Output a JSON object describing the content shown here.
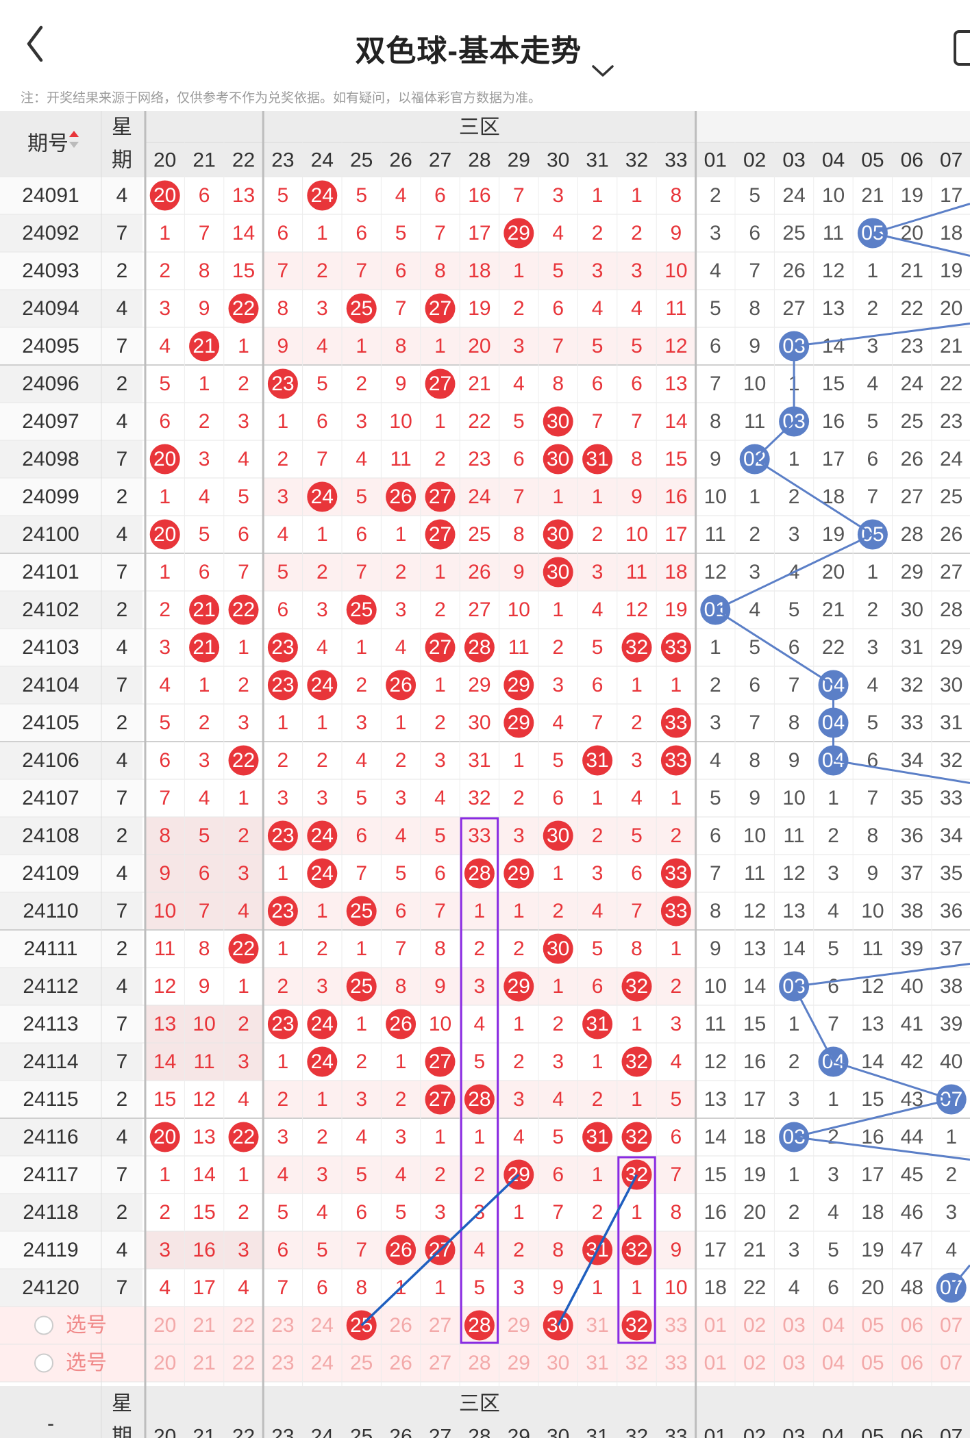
{
  "header": {
    "title": "双色球-基本走势",
    "notice": "注：开奖结果来源于网络，仅供参考不作为兑奖依据。如有疑问，以福体彩官方数据为准。",
    "back_icon": "chevron-left-icon",
    "dropdown_icon": "chevron-down-icon"
  },
  "table": {
    "col_period": "期号",
    "col_week_top": "星",
    "col_week_bottom": "期",
    "zone_label": "三区",
    "footer_dash": "-",
    "red_cols": [
      "20",
      "21",
      "22",
      "23",
      "24",
      "25",
      "26",
      "27",
      "28",
      "29",
      "30",
      "31",
      "32",
      "33"
    ],
    "blue_cols": [
      "01",
      "02",
      "03",
      "04",
      "05",
      "06",
      "07"
    ],
    "select_label": "选号",
    "rows": [
      {
        "p": "24091",
        "w": "4",
        "r": [
          "20",
          "6",
          "13",
          "5",
          "24",
          "5",
          "4",
          "6",
          "16",
          "7",
          "3",
          "1",
          "1",
          "8"
        ],
        "b": [
          "2",
          "5",
          "24",
          "10",
          "21",
          "19",
          "17"
        ]
      },
      {
        "p": "24092",
        "w": "7",
        "r": [
          "1",
          "7",
          "14",
          "6",
          "1",
          "6",
          "5",
          "7",
          "17",
          "29",
          "4",
          "2",
          "2",
          "9"
        ],
        "b": [
          "3",
          "6",
          "25",
          "11",
          "05",
          "20",
          "18"
        ]
      },
      {
        "p": "24093",
        "w": "2",
        "r": [
          "2",
          "8",
          "15",
          "7",
          "2",
          "7",
          "6",
          "8",
          "18",
          "1",
          "5",
          "3",
          "3",
          "10"
        ],
        "b": [
          "4",
          "7",
          "26",
          "12",
          "1",
          "21",
          "19"
        ]
      },
      {
        "p": "24094",
        "w": "4",
        "r": [
          "3",
          "9",
          "22",
          "8",
          "3",
          "25",
          "7",
          "27",
          "19",
          "2",
          "6",
          "4",
          "4",
          "11"
        ],
        "b": [
          "5",
          "8",
          "27",
          "13",
          "2",
          "22",
          "20"
        ]
      },
      {
        "p": "24095",
        "w": "7",
        "r": [
          "4",
          "21",
          "1",
          "9",
          "4",
          "1",
          "8",
          "1",
          "20",
          "3",
          "7",
          "5",
          "5",
          "12"
        ],
        "b": [
          "6",
          "9",
          "03",
          "14",
          "3",
          "23",
          "21"
        ]
      },
      {
        "p": "24096",
        "w": "2",
        "r": [
          "5",
          "1",
          "2",
          "23",
          "5",
          "2",
          "9",
          "27",
          "21",
          "4",
          "8",
          "6",
          "6",
          "13"
        ],
        "b": [
          "7",
          "10",
          "1",
          "15",
          "4",
          "24",
          "22"
        ]
      },
      {
        "p": "24097",
        "w": "4",
        "r": [
          "6",
          "2",
          "3",
          "1",
          "6",
          "3",
          "10",
          "1",
          "22",
          "5",
          "30",
          "7",
          "7",
          "14"
        ],
        "b": [
          "8",
          "11",
          "03",
          "16",
          "5",
          "25",
          "23"
        ]
      },
      {
        "p": "24098",
        "w": "7",
        "r": [
          "20",
          "3",
          "4",
          "2",
          "7",
          "4",
          "11",
          "2",
          "23",
          "6",
          "30",
          "31",
          "8",
          "15"
        ],
        "b": [
          "9",
          "02",
          "1",
          "17",
          "6",
          "26",
          "24"
        ]
      },
      {
        "p": "24099",
        "w": "2",
        "r": [
          "1",
          "4",
          "5",
          "3",
          "24",
          "5",
          "26",
          "27",
          "24",
          "7",
          "1",
          "1",
          "9",
          "16"
        ],
        "b": [
          "10",
          "1",
          "2",
          "18",
          "7",
          "27",
          "25"
        ]
      },
      {
        "p": "24100",
        "w": "4",
        "r": [
          "20",
          "5",
          "6",
          "4",
          "1",
          "6",
          "1",
          "27",
          "25",
          "8",
          "30",
          "2",
          "10",
          "17"
        ],
        "b": [
          "11",
          "2",
          "3",
          "19",
          "05",
          "28",
          "26"
        ]
      },
      {
        "p": "24101",
        "w": "7",
        "r": [
          "1",
          "6",
          "7",
          "5",
          "2",
          "7",
          "2",
          "1",
          "26",
          "9",
          "30",
          "3",
          "11",
          "18"
        ],
        "b": [
          "12",
          "3",
          "4",
          "20",
          "1",
          "29",
          "27"
        ]
      },
      {
        "p": "24102",
        "w": "2",
        "r": [
          "2",
          "21",
          "22",
          "6",
          "3",
          "25",
          "3",
          "2",
          "27",
          "10",
          "1",
          "4",
          "12",
          "19"
        ],
        "b": [
          "01",
          "4",
          "5",
          "21",
          "2",
          "30",
          "28"
        ]
      },
      {
        "p": "24103",
        "w": "4",
        "r": [
          "3",
          "21",
          "1",
          "23",
          "4",
          "1",
          "4",
          "27",
          "28",
          "11",
          "2",
          "5",
          "32",
          "33"
        ],
        "b": [
          "1",
          "5",
          "6",
          "22",
          "3",
          "31",
          "29"
        ]
      },
      {
        "p": "24104",
        "w": "7",
        "r": [
          "4",
          "1",
          "2",
          "23",
          "24",
          "2",
          "26",
          "1",
          "29",
          "29",
          "3",
          "6",
          "1",
          "1"
        ],
        "b": [
          "2",
          "6",
          "7",
          "04",
          "4",
          "32",
          "30"
        ]
      },
      {
        "p": "24105",
        "w": "2",
        "r": [
          "5",
          "2",
          "3",
          "1",
          "1",
          "3",
          "1",
          "2",
          "30",
          "29",
          "4",
          "7",
          "2",
          "33"
        ],
        "b": [
          "3",
          "7",
          "8",
          "04",
          "5",
          "33",
          "31"
        ]
      },
      {
        "p": "24106",
        "w": "4",
        "r": [
          "6",
          "3",
          "22",
          "2",
          "2",
          "4",
          "2",
          "3",
          "31",
          "1",
          "5",
          "31",
          "3",
          "33"
        ],
        "b": [
          "4",
          "8",
          "9",
          "04",
          "6",
          "34",
          "32"
        ]
      },
      {
        "p": "24107",
        "w": "7",
        "r": [
          "7",
          "4",
          "1",
          "3",
          "3",
          "5",
          "3",
          "4",
          "32",
          "2",
          "6",
          "1",
          "4",
          "1"
        ],
        "b": [
          "5",
          "9",
          "10",
          "1",
          "7",
          "35",
          "33"
        ]
      },
      {
        "p": "24108",
        "w": "2",
        "r": [
          "8",
          "5",
          "2",
          "23",
          "24",
          "6",
          "4",
          "5",
          "33",
          "3",
          "30",
          "2",
          "5",
          "2"
        ],
        "b": [
          "6",
          "10",
          "11",
          "2",
          "8",
          "36",
          "34"
        ]
      },
      {
        "p": "24109",
        "w": "4",
        "r": [
          "9",
          "6",
          "3",
          "1",
          "24",
          "7",
          "5",
          "6",
          "28",
          "29",
          "1",
          "3",
          "6",
          "33"
        ],
        "b": [
          "7",
          "11",
          "12",
          "3",
          "9",
          "37",
          "35"
        ]
      },
      {
        "p": "24110",
        "w": "7",
        "r": [
          "10",
          "7",
          "4",
          "23",
          "1",
          "25",
          "6",
          "7",
          "1",
          "1",
          "2",
          "4",
          "7",
          "33"
        ],
        "b": [
          "8",
          "12",
          "13",
          "4",
          "10",
          "38",
          "36"
        ]
      },
      {
        "p": "24111",
        "w": "2",
        "r": [
          "11",
          "8",
          "22",
          "1",
          "2",
          "1",
          "7",
          "8",
          "2",
          "2",
          "30",
          "5",
          "8",
          "1"
        ],
        "b": [
          "9",
          "13",
          "14",
          "5",
          "11",
          "39",
          "37"
        ]
      },
      {
        "p": "24112",
        "w": "4",
        "r": [
          "12",
          "9",
          "1",
          "2",
          "3",
          "25",
          "8",
          "9",
          "3",
          "29",
          "1",
          "6",
          "32",
          "2"
        ],
        "b": [
          "10",
          "14",
          "03",
          "6",
          "12",
          "40",
          "38"
        ]
      },
      {
        "p": "24113",
        "w": "7",
        "r": [
          "13",
          "10",
          "2",
          "23",
          "24",
          "1",
          "26",
          "10",
          "4",
          "1",
          "2",
          "31",
          "1",
          "3"
        ],
        "b": [
          "11",
          "15",
          "1",
          "7",
          "13",
          "41",
          "39"
        ]
      },
      {
        "p": "24114",
        "w": "7",
        "r": [
          "14",
          "11",
          "3",
          "1",
          "24",
          "2",
          "1",
          "27",
          "5",
          "2",
          "3",
          "1",
          "32",
          "4"
        ],
        "b": [
          "12",
          "16",
          "2",
          "04",
          "14",
          "42",
          "40"
        ]
      },
      {
        "p": "24115",
        "w": "2",
        "r": [
          "15",
          "12",
          "4",
          "2",
          "1",
          "3",
          "2",
          "27",
          "28",
          "3",
          "4",
          "2",
          "1",
          "5"
        ],
        "b": [
          "13",
          "17",
          "3",
          "1",
          "15",
          "43",
          "07"
        ]
      },
      {
        "p": "24116",
        "w": "4",
        "r": [
          "20",
          "13",
          "22",
          "3",
          "2",
          "4",
          "3",
          "1",
          "1",
          "4",
          "5",
          "31",
          "32",
          "6"
        ],
        "b": [
          "14",
          "18",
          "03",
          "2",
          "16",
          "44",
          "1"
        ]
      },
      {
        "p": "24117",
        "w": "7",
        "r": [
          "1",
          "14",
          "1",
          "4",
          "3",
          "5",
          "4",
          "2",
          "2",
          "29",
          "6",
          "1",
          "32",
          "7"
        ],
        "b": [
          "15",
          "19",
          "1",
          "3",
          "17",
          "45",
          "2"
        ]
      },
      {
        "p": "24118",
        "w": "2",
        "r": [
          "2",
          "15",
          "2",
          "5",
          "4",
          "6",
          "5",
          "3",
          "3",
          "1",
          "7",
          "2",
          "1",
          "8"
        ],
        "b": [
          "16",
          "20",
          "2",
          "4",
          "18",
          "46",
          "3"
        ]
      },
      {
        "p": "24119",
        "w": "4",
        "r": [
          "3",
          "16",
          "3",
          "6",
          "5",
          "7",
          "26",
          "27",
          "4",
          "2",
          "8",
          "31",
          "32",
          "9"
        ],
        "b": [
          "17",
          "21",
          "3",
          "5",
          "19",
          "47",
          "4"
        ]
      },
      {
        "p": "24120",
        "w": "7",
        "r": [
          "4",
          "17",
          "4",
          "7",
          "6",
          "8",
          "1",
          "1",
          "5",
          "3",
          "9",
          "1",
          "1",
          "10"
        ],
        "b": [
          "18",
          "22",
          "4",
          "6",
          "20",
          "48",
          "07"
        ]
      }
    ],
    "selected_red": [
      "25",
      "28",
      "30",
      "32"
    ]
  },
  "colors": {
    "red_ball": "#e8353a",
    "blue_ball": "#5b7fc7",
    "red_text": "#e8353a",
    "blue_text": "#555555",
    "header_bg": "#ececec",
    "stripe_pink": "#fdf0f0",
    "select_row_bg": "#ffeeee",
    "highlight_box": "#8a2be2",
    "line_blue": "#1f5fbf"
  }
}
